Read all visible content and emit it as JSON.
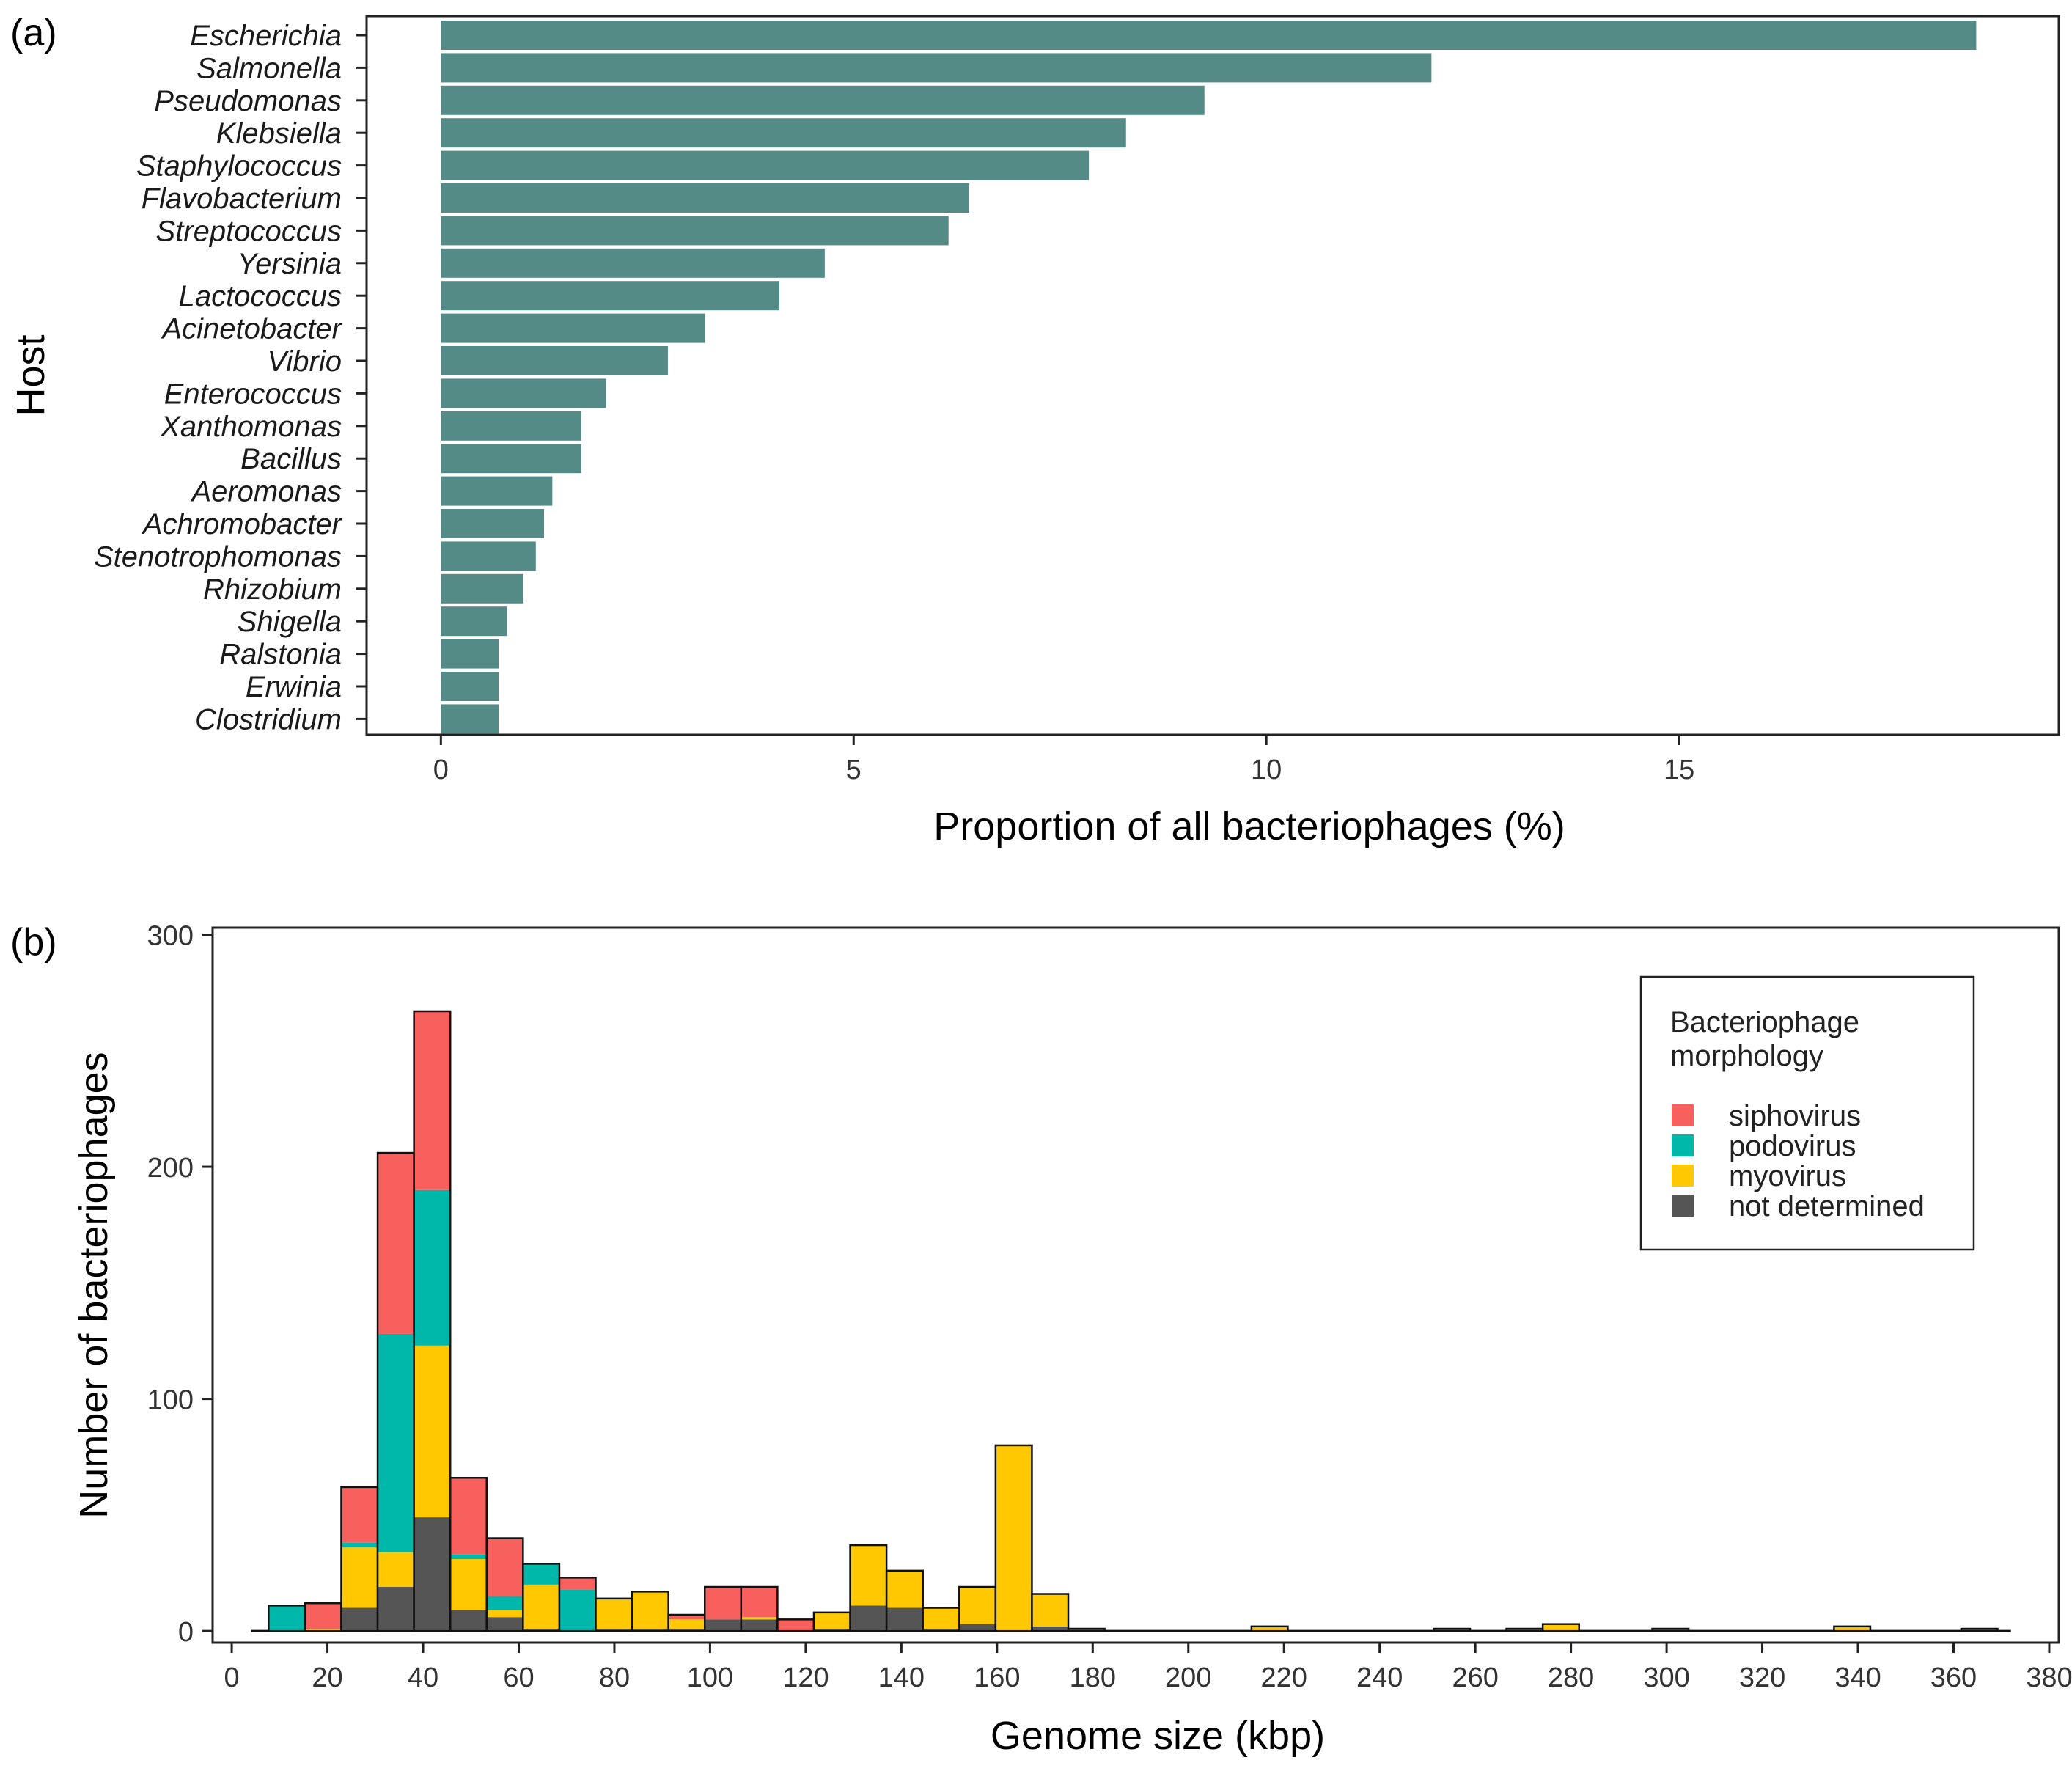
{
  "panel_a_label": "(a)",
  "panel_b_label": "(b)",
  "chart_data": [
    {
      "type": "bar",
      "orientation": "horizontal",
      "ylabel": "Host",
      "xlabel": "Proportion of all bacteriophages (%)",
      "xlim": [
        -0.9,
        19.6
      ],
      "xticks": [
        0,
        5,
        10,
        15
      ],
      "xtick_labels": [
        "0",
        "5",
        "10",
        "15"
      ],
      "bar_color": "#558b87",
      "categories": [
        "Escherichia",
        "Salmonella",
        "Pseudomonas",
        "Klebsiella",
        "Staphylococcus",
        "Flavobacterium",
        "Streptococcus",
        "Yersinia",
        "Lactococcus",
        "Acinetobacter",
        "Vibrio",
        "Enterococcus",
        "Xanthomonas",
        "Bacillus",
        "Aeromonas",
        "Achromobacter",
        "Stenotrophomonas",
        "Rhizobium",
        "Shigella",
        "Ralstonia",
        "Erwinia",
        "Clostridium"
      ],
      "values": [
        18.6,
        12.0,
        9.25,
        8.3,
        7.85,
        6.4,
        6.15,
        4.65,
        4.1,
        3.2,
        2.75,
        2.0,
        1.7,
        1.7,
        1.35,
        1.25,
        1.15,
        1.0,
        0.8,
        0.7,
        0.7,
        0.7
      ]
    },
    {
      "type": "bar",
      "stacked": true,
      "xlabel": "Genome size (kbp)",
      "ylabel": "Number of bacteriophages",
      "xlim": [
        -4,
        382
      ],
      "ylim": [
        -5,
        303
      ],
      "xticks": [
        0,
        20,
        40,
        60,
        80,
        100,
        120,
        140,
        160,
        180,
        200,
        220,
        240,
        260,
        280,
        300,
        320,
        340,
        360,
        380
      ],
      "xtick_labels": [
        "0",
        "20",
        "40",
        "60",
        "80",
        "100",
        "120",
        "140",
        "160",
        "180",
        "200",
        "220",
        "240",
        "260",
        "280",
        "300",
        "320",
        "340",
        "360",
        "380"
      ],
      "yticks": [
        0,
        100,
        200,
        300
      ],
      "ytick_labels": [
        "0",
        "100",
        "200",
        "300"
      ],
      "bin_width": 7.6,
      "legend": {
        "title": "Bacteriophage morphology",
        "title_lines": [
          "Bacteriophage",
          "morphology"
        ],
        "position": "top-right"
      },
      "bins": [
        11.5,
        19.1,
        26.7,
        34.3,
        41.9,
        49.5,
        57.1,
        64.7,
        72.3,
        79.9,
        87.5,
        95.1,
        102.7,
        110.3,
        117.9,
        125.5,
        133.1,
        140.7,
        148.3,
        155.9,
        163.5,
        171.1,
        178.7,
        217.0,
        255.1,
        270.3,
        277.9,
        300.8,
        338.8,
        365.4
      ],
      "series": [
        {
          "name": "not determined",
          "color": "#555555",
          "values": [
            0,
            0,
            10,
            19,
            49,
            9,
            6,
            1,
            0,
            1,
            1,
            1,
            5,
            5,
            0,
            1,
            11,
            10,
            1,
            3,
            0,
            2,
            1,
            0,
            1,
            1,
            0,
            1,
            0,
            1
          ]
        },
        {
          "name": "myovirus",
          "color": "#ffc800",
          "values": [
            0,
            1,
            26,
            15,
            74,
            22,
            3,
            19,
            0,
            13,
            16,
            4,
            0,
            1,
            0,
            7,
            26,
            16,
            9,
            16,
            80,
            14,
            0,
            2,
            0,
            0,
            3,
            0,
            2,
            0
          ]
        },
        {
          "name": "podovirus",
          "color": "#00b8a9",
          "values": [
            11,
            0,
            2,
            94,
            67,
            2,
            6,
            9,
            18,
            0,
            0,
            0,
            0,
            0,
            0,
            0,
            0,
            0,
            0,
            0,
            0,
            0,
            0,
            0,
            0,
            0,
            0,
            0,
            0,
            0
          ]
        },
        {
          "name": "siphovirus",
          "color": "#f8605e",
          "values": [
            0,
            11,
            24,
            78,
            77,
            33,
            25,
            0,
            5,
            0,
            0,
            2,
            14,
            13,
            5,
            0,
            0,
            0,
            0,
            0,
            0,
            0,
            0,
            0,
            0,
            0,
            0,
            0,
            0,
            0
          ]
        }
      ],
      "legend_order": [
        "siphovirus",
        "podovirus",
        "myovirus",
        "not determined"
      ]
    }
  ]
}
